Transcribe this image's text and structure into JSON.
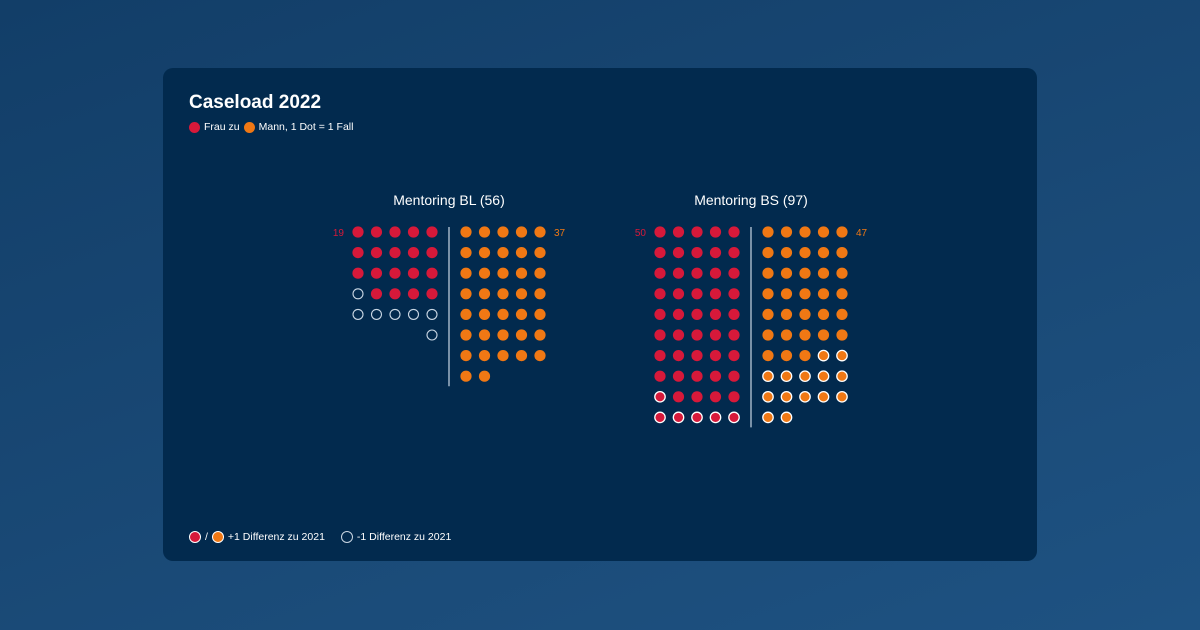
{
  "title": "Caseload 2022",
  "legend": {
    "female": "Frau zu",
    "male": "Mann, 1 Dot = 1 Fall",
    "plus": "+1 Differenz zu 2021",
    "slash": "/",
    "minus": "-1 Differenz zu 2021"
  },
  "colors": {
    "female": "#d7193a",
    "male": "#f07814",
    "outline": "#c9d6e3",
    "card": "#022a4e"
  },
  "chart_data": [
    {
      "type": "dot-matrix",
      "title": "Mentoring BL (56)",
      "female": {
        "count": 19,
        "label": "19",
        "plus1": 0,
        "minus1": 7
      },
      "male": {
        "count": 37,
        "label": "37",
        "plus1": 0,
        "minus1": 0
      }
    },
    {
      "type": "dot-matrix",
      "title": "Mentoring BS (97)",
      "female": {
        "count": 50,
        "label": "50",
        "plus1": 6,
        "minus1": 0
      },
      "male": {
        "count": 47,
        "label": "47",
        "plus1": 14,
        "minus1": 0
      }
    }
  ]
}
